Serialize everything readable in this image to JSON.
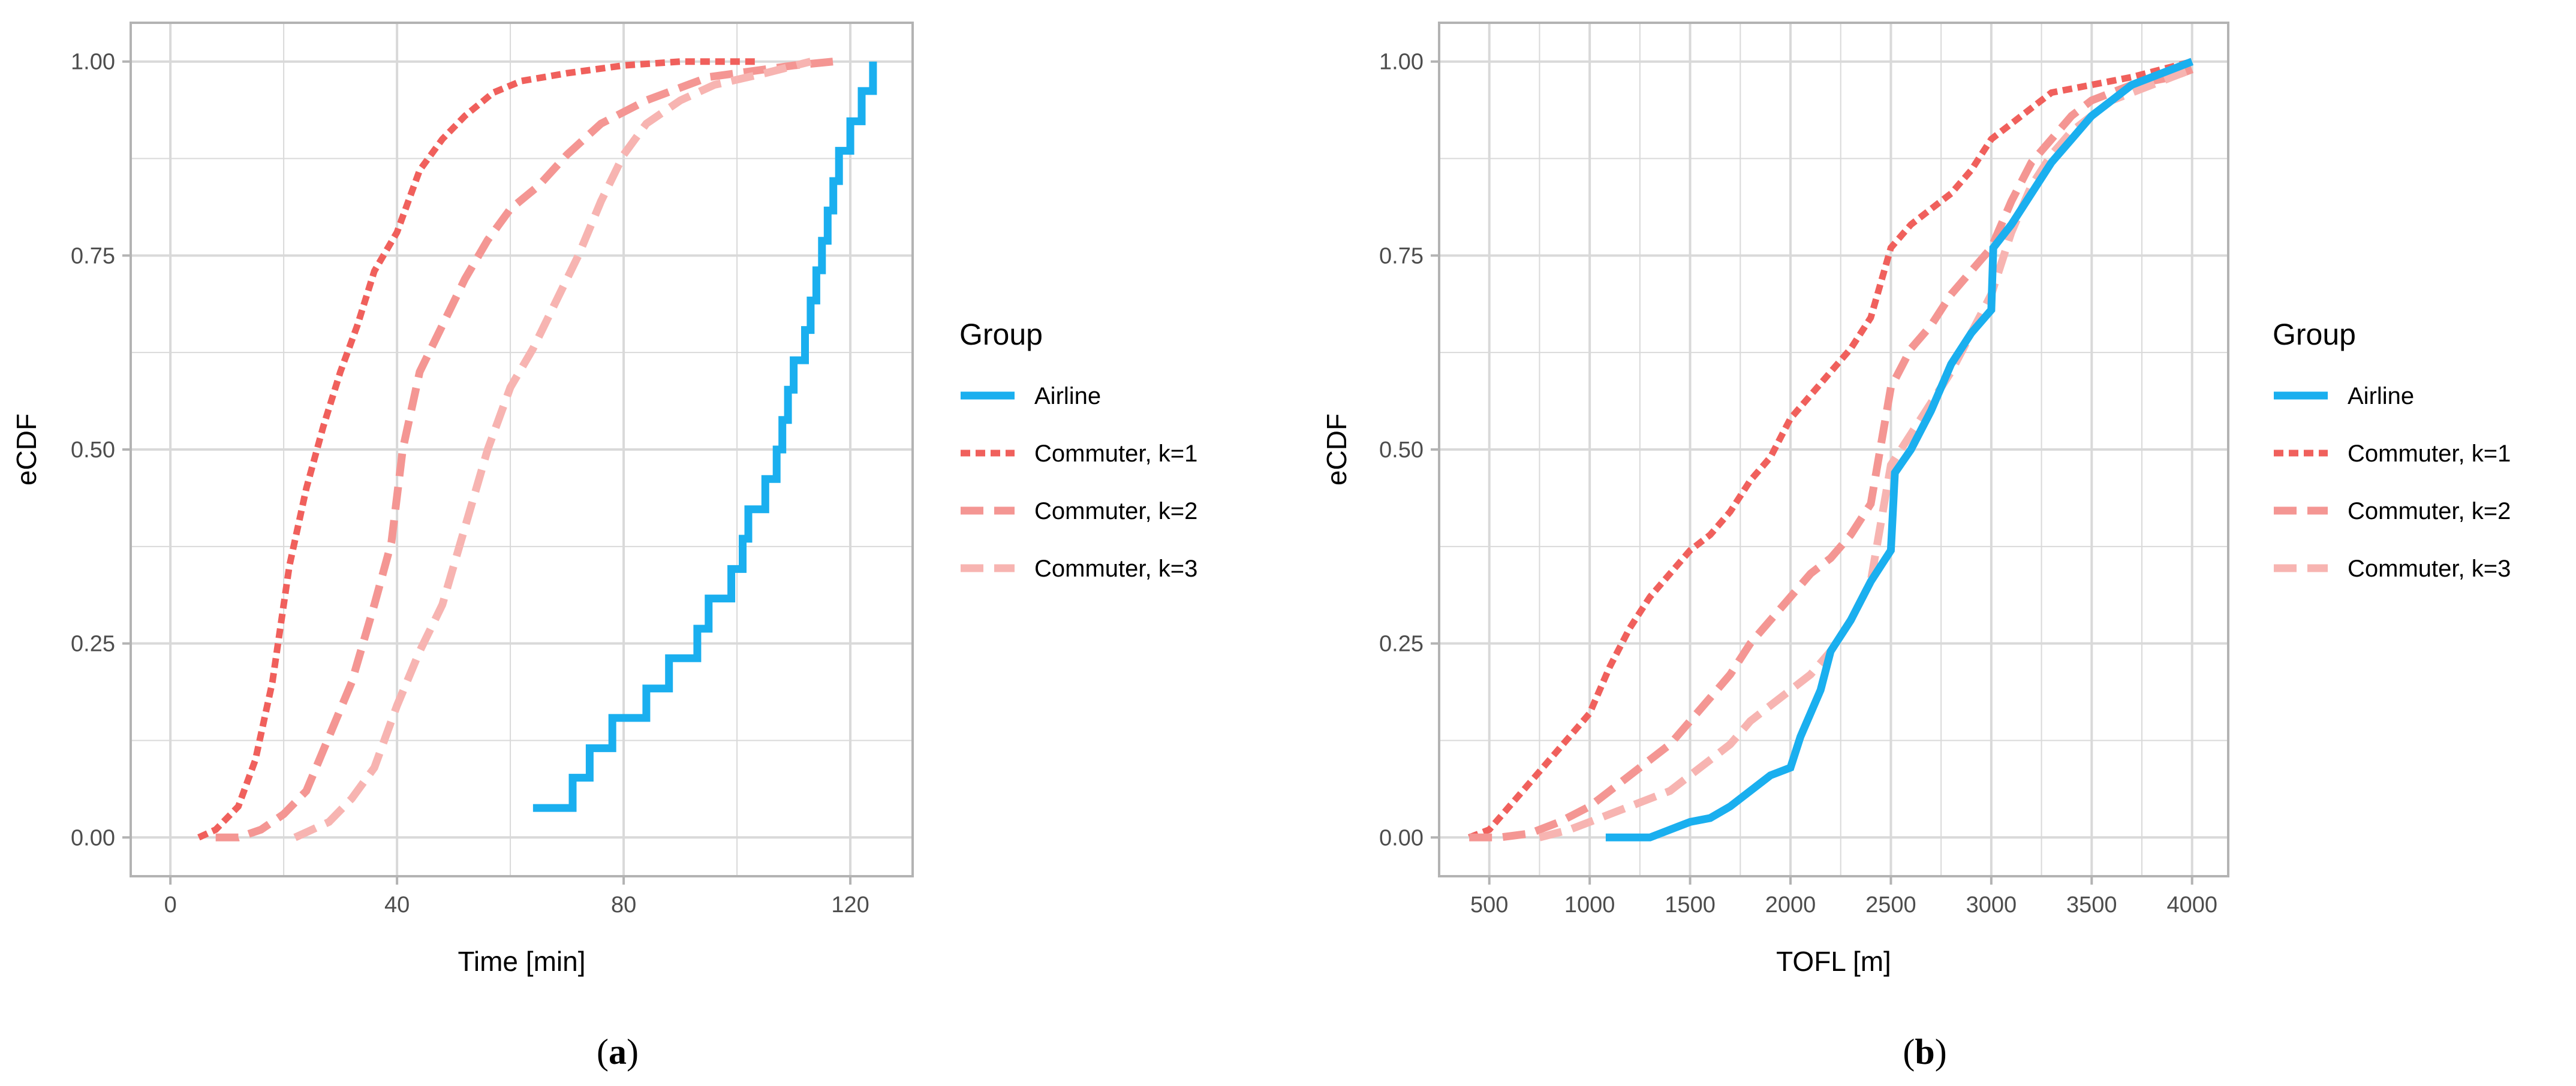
{
  "colors": {
    "airline": "#1aafef",
    "commuter_k1": "#f0605c",
    "commuter_k2": "#f49693",
    "commuter_k3": "#f7b4b1",
    "grid": "#d9d9d9",
    "frame": "#b3b3b3"
  },
  "chart_data": [
    {
      "id": "a",
      "type": "line",
      "panel_label": {
        "open": "(",
        "letter": "a",
        "close": ")"
      },
      "xlabel": "Time [min]",
      "ylabel": "eCDF",
      "xlim": [
        -7,
        131
      ],
      "ylim": [
        -0.05,
        1.05
      ],
      "x_ticks": [
        0,
        40,
        80,
        120
      ],
      "x_tick_labels": [
        "0",
        "40",
        "80",
        "120"
      ],
      "y_ticks": [
        0,
        0.25,
        0.5,
        0.75,
        1
      ],
      "y_tick_labels": [
        "0.00",
        "0.25",
        "0.50",
        "0.75",
        "1.00"
      ],
      "legend": {
        "title": "Group",
        "position": "right"
      },
      "series": [
        {
          "name": "Commuter, k=1",
          "style": "k1",
          "points": [
            [
              5,
              0
            ],
            [
              8,
              0.01
            ],
            [
              12,
              0.04
            ],
            [
              15,
              0.1
            ],
            [
              18,
              0.2
            ],
            [
              21,
              0.35
            ],
            [
              24,
              0.45
            ],
            [
              27,
              0.53
            ],
            [
              30,
              0.6
            ],
            [
              33,
              0.66
            ],
            [
              36,
              0.73
            ],
            [
              40,
              0.78
            ],
            [
              44,
              0.86
            ],
            [
              48,
              0.9
            ],
            [
              52,
              0.93
            ],
            [
              57,
              0.96
            ],
            [
              62,
              0.975
            ],
            [
              70,
              0.985
            ],
            [
              80,
              0.995
            ],
            [
              90,
              1
            ],
            [
              104,
              1
            ]
          ]
        },
        {
          "name": "Commuter, k=2",
          "style": "k2",
          "points": [
            [
              8,
              0
            ],
            [
              12,
              0
            ],
            [
              16,
              0.01
            ],
            [
              20,
              0.03
            ],
            [
              24,
              0.06
            ],
            [
              28,
              0.13
            ],
            [
              32,
              0.2
            ],
            [
              36,
              0.3
            ],
            [
              39,
              0.38
            ],
            [
              41,
              0.5
            ],
            [
              44,
              0.6
            ],
            [
              48,
              0.66
            ],
            [
              52,
              0.72
            ],
            [
              56,
              0.77
            ],
            [
              60,
              0.81
            ],
            [
              65,
              0.84
            ],
            [
              70,
              0.88
            ],
            [
              76,
              0.92
            ],
            [
              84,
              0.95
            ],
            [
              95,
              0.98
            ],
            [
              110,
              0.995
            ],
            [
              117,
              1
            ]
          ]
        },
        {
          "name": "Commuter, k=3",
          "style": "k3",
          "points": [
            [
              22,
              0
            ],
            [
              28,
              0.02
            ],
            [
              32,
              0.05
            ],
            [
              36,
              0.09
            ],
            [
              40,
              0.17
            ],
            [
              44,
              0.24
            ],
            [
              48,
              0.3
            ],
            [
              52,
              0.4
            ],
            [
              56,
              0.5
            ],
            [
              60,
              0.58
            ],
            [
              64,
              0.63
            ],
            [
              68,
              0.69
            ],
            [
              72,
              0.75
            ],
            [
              76,
              0.82
            ],
            [
              80,
              0.88
            ],
            [
              84,
              0.92
            ],
            [
              90,
              0.95
            ],
            [
              96,
              0.97
            ],
            [
              105,
              0.985
            ],
            [
              113,
              1
            ]
          ]
        },
        {
          "name": "Airline",
          "style": "airline",
          "points": [
            [
              64,
              0.038
            ],
            [
              71,
              0.038
            ],
            [
              71,
              0.077
            ],
            [
              74,
              0.077
            ],
            [
              74,
              0.115
            ],
            [
              78,
              0.115
            ],
            [
              78,
              0.154
            ],
            [
              84,
              0.154
            ],
            [
              84,
              0.192
            ],
            [
              88,
              0.192
            ],
            [
              88,
              0.231
            ],
            [
              93,
              0.231
            ],
            [
              93,
              0.269
            ],
            [
              95,
              0.269
            ],
            [
              95,
              0.308
            ],
            [
              99,
              0.308
            ],
            [
              99,
              0.346
            ],
            [
              101,
              0.346
            ],
            [
              101,
              0.385
            ],
            [
              102,
              0.385
            ],
            [
              102,
              0.423
            ],
            [
              105,
              0.423
            ],
            [
              105,
              0.462
            ],
            [
              107,
              0.462
            ],
            [
              107,
              0.5
            ],
            [
              108,
              0.5
            ],
            [
              108,
              0.538
            ],
            [
              109,
              0.538
            ],
            [
              109,
              0.577
            ],
            [
              110,
              0.577
            ],
            [
              110,
              0.615
            ],
            [
              112,
              0.615
            ],
            [
              112,
              0.654
            ],
            [
              113,
              0.654
            ],
            [
              113,
              0.692
            ],
            [
              114,
              0.692
            ],
            [
              114,
              0.731
            ],
            [
              115,
              0.731
            ],
            [
              115,
              0.769
            ],
            [
              116,
              0.769
            ],
            [
              116,
              0.808
            ],
            [
              117,
              0.808
            ],
            [
              117,
              0.846
            ],
            [
              118,
              0.846
            ],
            [
              118,
              0.885
            ],
            [
              120,
              0.885
            ],
            [
              120,
              0.923
            ],
            [
              122,
              0.923
            ],
            [
              122,
              0.962
            ],
            [
              124,
              0.962
            ],
            [
              124,
              1.0
            ]
          ]
        }
      ]
    },
    {
      "id": "b",
      "type": "line",
      "panel_label": {
        "open": "(",
        "letter": "b",
        "close": ")"
      },
      "xlabel": "TOFL [m]",
      "ylabel": "eCDF",
      "xlim": [
        250,
        4180
      ],
      "ylim": [
        -0.05,
        1.05
      ],
      "x_ticks": [
        500,
        1000,
        1500,
        2000,
        2500,
        3000,
        3500,
        4000
      ],
      "x_tick_labels": [
        "500",
        "1000",
        "1500",
        "2000",
        "2500",
        "3000",
        "3500",
        "4000"
      ],
      "y_ticks": [
        0,
        0.25,
        0.5,
        0.75,
        1
      ],
      "y_tick_labels": [
        "0.00",
        "0.25",
        "0.50",
        "0.75",
        "1.00"
      ],
      "legend": {
        "title": "Group",
        "position": "right"
      },
      "series": [
        {
          "name": "Commuter, k=1",
          "style": "k1",
          "points": [
            [
              400,
              0
            ],
            [
              500,
              0.01
            ],
            [
              600,
              0.04
            ],
            [
              700,
              0.07
            ],
            [
              800,
              0.1
            ],
            [
              900,
              0.13
            ],
            [
              1000,
              0.16
            ],
            [
              1100,
              0.22
            ],
            [
              1200,
              0.27
            ],
            [
              1300,
              0.31
            ],
            [
              1400,
              0.34
            ],
            [
              1500,
              0.37
            ],
            [
              1600,
              0.39
            ],
            [
              1700,
              0.42
            ],
            [
              1800,
              0.46
            ],
            [
              1900,
              0.49
            ],
            [
              2000,
              0.54
            ],
            [
              2100,
              0.57
            ],
            [
              2200,
              0.6
            ],
            [
              2300,
              0.63
            ],
            [
              2400,
              0.67
            ],
            [
              2500,
              0.76
            ],
            [
              2600,
              0.79
            ],
            [
              2700,
              0.81
            ],
            [
              2800,
              0.83
            ],
            [
              2900,
              0.86
            ],
            [
              3000,
              0.9
            ],
            [
              3100,
              0.92
            ],
            [
              3200,
              0.94
            ],
            [
              3300,
              0.96
            ],
            [
              3500,
              0.97
            ],
            [
              3700,
              0.98
            ],
            [
              4000,
              1
            ]
          ]
        },
        {
          "name": "Commuter, k=2",
          "style": "k2",
          "points": [
            [
              400,
              0
            ],
            [
              550,
              0
            ],
            [
              700,
              0.005
            ],
            [
              850,
              0.02
            ],
            [
              1000,
              0.04
            ],
            [
              1100,
              0.06
            ],
            [
              1200,
              0.08
            ],
            [
              1300,
              0.1
            ],
            [
              1400,
              0.12
            ],
            [
              1500,
              0.15
            ],
            [
              1600,
              0.18
            ],
            [
              1700,
              0.21
            ],
            [
              1800,
              0.25
            ],
            [
              1900,
              0.28
            ],
            [
              2000,
              0.31
            ],
            [
              2100,
              0.34
            ],
            [
              2200,
              0.36
            ],
            [
              2300,
              0.39
            ],
            [
              2400,
              0.43
            ],
            [
              2500,
              0.58
            ],
            [
              2600,
              0.63
            ],
            [
              2700,
              0.66
            ],
            [
              2800,
              0.7
            ],
            [
              2900,
              0.73
            ],
            [
              3000,
              0.76
            ],
            [
              3100,
              0.82
            ],
            [
              3200,
              0.87
            ],
            [
              3300,
              0.9
            ],
            [
              3400,
              0.93
            ],
            [
              3500,
              0.95
            ],
            [
              3700,
              0.97
            ],
            [
              3900,
              0.98
            ],
            [
              4000,
              0.99
            ]
          ]
        },
        {
          "name": "Commuter, k=3",
          "style": "k3",
          "points": [
            [
              750,
              0
            ],
            [
              900,
              0.01
            ],
            [
              1000,
              0.02
            ],
            [
              1100,
              0.03
            ],
            [
              1200,
              0.04
            ],
            [
              1300,
              0.05
            ],
            [
              1400,
              0.06
            ],
            [
              1500,
              0.08
            ],
            [
              1600,
              0.1
            ],
            [
              1700,
              0.12
            ],
            [
              1800,
              0.15
            ],
            [
              1900,
              0.17
            ],
            [
              2000,
              0.19
            ],
            [
              2100,
              0.21
            ],
            [
              2200,
              0.24
            ],
            [
              2300,
              0.28
            ],
            [
              2400,
              0.33
            ],
            [
              2500,
              0.48
            ],
            [
              2600,
              0.52
            ],
            [
              2700,
              0.56
            ],
            [
              2800,
              0.6
            ],
            [
              2900,
              0.65
            ],
            [
              3000,
              0.7
            ],
            [
              3100,
              0.78
            ],
            [
              3200,
              0.84
            ],
            [
              3300,
              0.88
            ],
            [
              3400,
              0.91
            ],
            [
              3500,
              0.93
            ],
            [
              3600,
              0.95
            ],
            [
              3700,
              0.96
            ],
            [
              3800,
              0.97
            ],
            [
              3900,
              0.98
            ],
            [
              4000,
              0.99
            ]
          ]
        },
        {
          "name": "Airline",
          "style": "airline",
          "points": [
            [
              1080,
              0
            ],
            [
              1300,
              0
            ],
            [
              1400,
              0.01
            ],
            [
              1500,
              0.02
            ],
            [
              1600,
              0.025
            ],
            [
              1700,
              0.04
            ],
            [
              1800,
              0.06
            ],
            [
              1900,
              0.08
            ],
            [
              2000,
              0.09
            ],
            [
              2050,
              0.13
            ],
            [
              2100,
              0.16
            ],
            [
              2150,
              0.19
            ],
            [
              2200,
              0.24
            ],
            [
              2300,
              0.28
            ],
            [
              2400,
              0.33
            ],
            [
              2500,
              0.37
            ],
            [
              2520,
              0.47
            ],
            [
              2600,
              0.5
            ],
            [
              2700,
              0.55
            ],
            [
              2800,
              0.61
            ],
            [
              2900,
              0.65
            ],
            [
              3000,
              0.68
            ],
            [
              3010,
              0.76
            ],
            [
              3100,
              0.79
            ],
            [
              3200,
              0.83
            ],
            [
              3300,
              0.87
            ],
            [
              3400,
              0.9
            ],
            [
              3500,
              0.93
            ],
            [
              3600,
              0.95
            ],
            [
              3700,
              0.97
            ],
            [
              3800,
              0.98
            ],
            [
              3900,
              0.99
            ],
            [
              4000,
              1
            ]
          ]
        }
      ]
    }
  ]
}
